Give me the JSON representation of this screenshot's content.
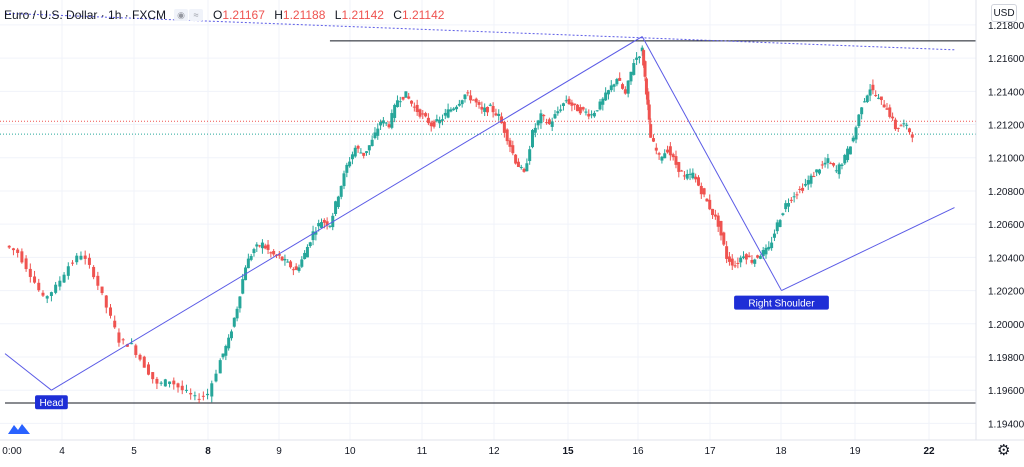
{
  "header": {
    "symbol_title": "Euro / U.S. Dollar · 1h · FXCM",
    "open": "1.21167",
    "high": "1.21188",
    "low": "1.21142",
    "close": "1.21142",
    "open_prefix": "O",
    "high_prefix": "H",
    "low_prefix": "L",
    "close_prefix": "C",
    "currency_button": "USD"
  },
  "colors": {
    "up": "#26a69a",
    "down": "#ef5350",
    "drawing": "#5b5be6",
    "label_bg": "#1e2ed6",
    "horizontal_line": "#131722",
    "price_axis_label_bg": "#131722"
  },
  "icons": [
    "tradingview-logo-icon",
    "settings-gear-icon",
    "eye-icon",
    "chart-style-icon"
  ],
  "chart_data": {
    "type": "candlestick",
    "title": "Euro / U.S. Dollar · 1h · FXCM",
    "xlabel": "",
    "ylabel": "",
    "ylim": [
      1.193,
      1.2195
    ],
    "y_ticks": [
      "1.19400",
      "1.19600",
      "1.19800",
      "1.20000",
      "1.20200",
      "1.20400",
      "1.20600",
      "1.20800",
      "1.21000",
      "1.21200",
      "1.21400",
      "1.21600",
      "1.21800"
    ],
    "x_ticks": [
      {
        "label": "0:00",
        "x": 0.0
      },
      {
        "label": "4",
        "x": 4.0
      },
      {
        "label": "5",
        "x": 5.0
      },
      {
        "label": "8",
        "x": 6.0
      },
      {
        "label": "9",
        "x": 7.0
      },
      {
        "label": "10",
        "x": 8.0
      },
      {
        "label": "11",
        "x": 9.0
      },
      {
        "label": "12",
        "x": 10.0
      },
      {
        "label": "15",
        "x": 11.0
      },
      {
        "label": "16",
        "x": 12.0
      },
      {
        "label": "17",
        "x": 13.0
      },
      {
        "label": "18",
        "x": 14.0
      },
      {
        "label": "19",
        "x": 15.0
      },
      {
        "label": "22",
        "x": 16.0
      }
    ],
    "bold_ticks": [
      "8",
      "15",
      "22"
    ],
    "price_path": [
      [
        -3.1,
        1.2047
      ],
      [
        -2.8,
        1.2043
      ],
      [
        -2.5,
        1.203
      ],
      [
        -2.2,
        1.2015
      ],
      [
        -1.9,
        1.2022
      ],
      [
        -1.6,
        1.2035
      ],
      [
        -1.3,
        1.2042
      ],
      [
        -1.0,
        1.203
      ],
      [
        -0.7,
        1.201
      ],
      [
        -0.4,
        1.199
      ],
      [
        -0.1,
        1.1987
      ],
      [
        0.2,
        1.1975
      ],
      [
        0.5,
        1.1963
      ],
      [
        0.8,
        1.1966
      ],
      [
        1.1,
        1.196
      ],
      [
        1.4,
        1.1955
      ],
      [
        1.7,
        1.1958
      ],
      [
        2.0,
        1.1978
      ],
      [
        2.2,
        1.199
      ],
      [
        2.4,
        1.201
      ],
      [
        2.6,
        1.2035
      ],
      [
        2.8,
        1.2045
      ],
      [
        3.0,
        1.2048
      ],
      [
        3.2,
        1.2042
      ],
      [
        3.4,
        1.204
      ],
      [
        3.6,
        1.2036
      ],
      [
        3.8,
        1.2032
      ],
      [
        4.0,
        1.2042
      ],
      [
        4.2,
        1.2055
      ],
      [
        4.4,
        1.2062
      ],
      [
        4.6,
        1.206
      ],
      [
        4.8,
        1.2078
      ],
      [
        5.0,
        1.2095
      ],
      [
        5.2,
        1.2106
      ],
      [
        5.4,
        1.2102
      ],
      [
        5.6,
        1.211
      ],
      [
        5.8,
        1.2122
      ],
      [
        6.0,
        1.212
      ],
      [
        6.2,
        1.2135
      ],
      [
        6.4,
        1.2138
      ],
      [
        6.6,
        1.213
      ],
      [
        6.8,
        1.2125
      ],
      [
        7.0,
        1.212
      ],
      [
        7.2,
        1.2122
      ],
      [
        7.4,
        1.2128
      ],
      [
        7.6,
        1.2132
      ],
      [
        7.8,
        1.2138
      ],
      [
        8.0,
        1.2135
      ],
      [
        8.2,
        1.2128
      ],
      [
        8.4,
        1.213
      ],
      [
        8.6,
        1.2125
      ],
      [
        8.8,
        1.2112
      ],
      [
        9.0,
        1.2098
      ],
      [
        9.2,
        1.209
      ],
      [
        9.4,
        1.2115
      ],
      [
        9.6,
        1.2125
      ],
      [
        9.8,
        1.212
      ],
      [
        10.0,
        1.2128
      ],
      [
        10.2,
        1.2135
      ],
      [
        10.4,
        1.213
      ],
      [
        10.6,
        1.2128
      ],
      [
        10.8,
        1.2126
      ],
      [
        11.0,
        1.2132
      ],
      [
        11.2,
        1.214
      ],
      [
        11.4,
        1.2148
      ],
      [
        11.6,
        1.2138
      ],
      [
        11.8,
        1.2158
      ],
      [
        12.0,
        1.2165
      ],
      [
        12.1,
        1.214
      ],
      [
        12.2,
        1.2112
      ],
      [
        12.4,
        1.21
      ],
      [
        12.6,
        1.2105
      ],
      [
        12.8,
        1.2096
      ],
      [
        13.0,
        1.2088
      ],
      [
        13.2,
        1.209
      ],
      [
        13.4,
        1.208
      ],
      [
        13.6,
        1.207
      ],
      [
        13.8,
        1.206
      ],
      [
        14.0,
        1.204
      ],
      [
        14.2,
        1.2035
      ],
      [
        14.4,
        1.2042
      ],
      [
        14.6,
        1.2038
      ],
      [
        14.8,
        1.2042
      ],
      [
        15.0,
        1.2045
      ],
      [
        15.2,
        1.206
      ],
      [
        15.4,
        1.2072
      ],
      [
        15.6,
        1.2078
      ],
      [
        15.8,
        1.2082
      ],
      [
        16.0,
        1.2088
      ],
      [
        16.2,
        1.2094
      ],
      [
        16.4,
        1.2098
      ],
      [
        16.6,
        1.2092
      ],
      [
        16.8,
        1.21
      ],
      [
        17.0,
        1.2112
      ],
      [
        17.2,
        1.2132
      ],
      [
        17.4,
        1.2142
      ],
      [
        17.6,
        1.2135
      ],
      [
        17.8,
        1.213
      ],
      [
        18.0,
        1.2118
      ],
      [
        18.2,
        1.212
      ],
      [
        18.4,
        1.2114
      ]
    ],
    "pattern_lines": [
      {
        "name": "head-left-leg",
        "points": [
          [
            -3.1,
            1.1982
          ],
          [
            -2.0,
            1.196
          ]
        ]
      },
      {
        "name": "head-right-leg",
        "points": [
          [
            -2.0,
            1.196
          ],
          [
            12.0,
            1.2173
          ]
        ]
      },
      {
        "name": "right-shoulder-left-leg",
        "points": [
          [
            12.0,
            1.2173
          ],
          [
            15.3,
            1.202
          ]
        ]
      },
      {
        "name": "right-shoulder-right-leg",
        "points": [
          [
            15.3,
            1.202
          ],
          [
            19.4,
            1.207
          ]
        ]
      }
    ],
    "trend_line": {
      "points": [
        [
          -3.1,
          1.2187
        ],
        [
          19.4,
          1.2165
        ]
      ]
    },
    "horizontal_levels": [
      {
        "value": 1.21704,
        "label": "1.21704",
        "x_start": 4.6
      },
      {
        "value": 1.19523,
        "label": "1.19523",
        "x_start": -3.1
      }
    ],
    "current_price": {
      "value": 1.21142,
      "line_color": "#26a69a"
    },
    "prev_close_line": {
      "value": 1.2122,
      "color": "#ef5350"
    },
    "annotations": [
      {
        "text": "Head",
        "x": -2.0,
        "y": 1.196
      },
      {
        "text": "Right Shoulder",
        "x": 15.3,
        "y": 1.202
      }
    ]
  }
}
